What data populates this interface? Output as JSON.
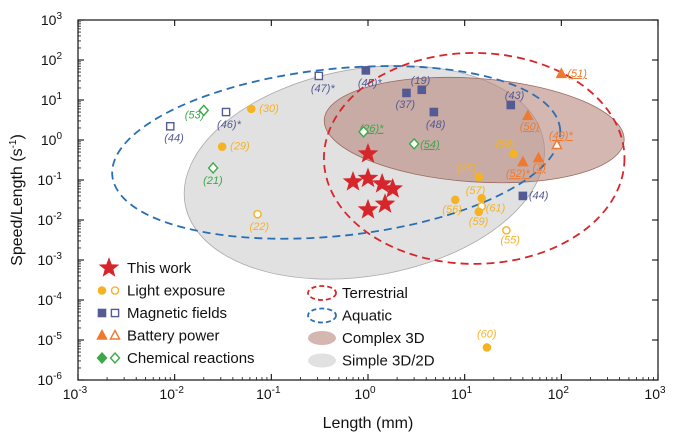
{
  "chart_data": {
    "type": "scatter",
    "xlabel": "Length (mm)",
    "ylabel": "Speed/Length (s⁻¹)",
    "x_scale": "log",
    "y_scale": "log",
    "xlim": [
      0.001,
      1000
    ],
    "ylim": [
      1e-06,
      1000
    ],
    "x_ticks": [
      {
        "value": 0.001,
        "base": "10",
        "exp": "-3"
      },
      {
        "value": 0.01,
        "base": "10",
        "exp": "-2"
      },
      {
        "value": 0.1,
        "base": "10",
        "exp": "-1"
      },
      {
        "value": 1,
        "base": "10",
        "exp": "0"
      },
      {
        "value": 10,
        "base": "10",
        "exp": "1"
      },
      {
        "value": 100,
        "base": "10",
        "exp": "2"
      },
      {
        "value": 1000,
        "base": "10",
        "exp": "3"
      }
    ],
    "y_ticks": [
      {
        "value": 1e-06,
        "base": "10",
        "exp": "-6"
      },
      {
        "value": 1e-05,
        "base": "10",
        "exp": "-5"
      },
      {
        "value": 0.0001,
        "base": "10",
        "exp": "-4"
      },
      {
        "value": 0.001,
        "base": "10",
        "exp": "-3"
      },
      {
        "value": 0.01,
        "base": "10",
        "exp": "-2"
      },
      {
        "value": 0.1,
        "base": "10",
        "exp": "-1"
      },
      {
        "value": 1,
        "base": "10",
        "exp": "0"
      },
      {
        "value": 10,
        "base": "10",
        "exp": "1"
      },
      {
        "value": 100,
        "base": "10",
        "exp": "2"
      },
      {
        "value": 1000,
        "base": "10",
        "exp": "3"
      }
    ],
    "colors": {
      "this_work": "#d7262b",
      "light": "#f5b324",
      "magnetic": "#545a94",
      "battery": "#ef7a2f",
      "chemical": "#3ba84a",
      "terrestrial": "#d7262b",
      "aquatic": "#2a6fb5",
      "complex_fill": "#b7877c",
      "simple_fill": "#c9c9c9"
    },
    "regions": [
      {
        "name": "Terrestrial",
        "style": "dashed",
        "x_range": [
          0.35,
          450
        ],
        "y_range": [
          0.0008,
          150
        ]
      },
      {
        "name": "Aquatic",
        "style": "dashed",
        "x_range": [
          0.0022,
          100
        ],
        "y_range": [
          0.004,
          60
        ]
      },
      {
        "name": "Complex 3D",
        "style": "filled",
        "x_range": [
          0.35,
          450
        ],
        "y_range": [
          0.09,
          35
        ]
      },
      {
        "name": "Simple 3D/2D",
        "style": "filled",
        "x_range": [
          0.012,
          70
        ],
        "y_range": [
          0.0004,
          60
        ]
      }
    ],
    "series": [
      {
        "name": "This work",
        "marker": "star",
        "points": [
          {
            "x": 1.0,
            "y": 0.45
          },
          {
            "x": 0.7,
            "y": 0.09
          },
          {
            "x": 1.0,
            "y": 0.11
          },
          {
            "x": 1.4,
            "y": 0.08
          },
          {
            "x": 1.8,
            "y": 0.06
          },
          {
            "x": 1.0,
            "y": 0.018
          },
          {
            "x": 1.5,
            "y": 0.025
          }
        ]
      },
      {
        "name": "Light exposure",
        "marker": "circle",
        "points": [
          {
            "x": 0.062,
            "y": 6.0,
            "label": "(30)",
            "filled": true
          },
          {
            "x": 0.031,
            "y": 0.68,
            "label": "(29)",
            "filled": true
          },
          {
            "x": 0.072,
            "y": 0.014,
            "label": "(22)",
            "filled": false
          },
          {
            "x": 8.0,
            "y": 0.032,
            "label": "(56)",
            "filled": true
          },
          {
            "x": 14,
            "y": 0.12,
            "label": "(25)",
            "filled": true
          },
          {
            "x": 15,
            "y": 0.035,
            "label": "(57)",
            "filled": true
          },
          {
            "x": 15,
            "y": 0.022,
            "label": "(61)",
            "filled": false
          },
          {
            "x": 14,
            "y": 0.016,
            "label": "(59)",
            "filled": true
          },
          {
            "x": 27,
            "y": 0.0055,
            "label": "(55)",
            "filled": false
          },
          {
            "x": 32,
            "y": 0.45,
            "label": "(58)",
            "filled": true
          },
          {
            "x": 17,
            "y": 6.5e-06,
            "label": "(60)",
            "filled": true
          }
        ]
      },
      {
        "name": "Magnetic fields",
        "marker": "square",
        "points": [
          {
            "x": 0.009,
            "y": 2.2,
            "label": "(44)",
            "filled": false
          },
          {
            "x": 0.034,
            "y": 5.0,
            "label": "(46)*",
            "filled": false
          },
          {
            "x": 0.31,
            "y": 40,
            "label": "(47)*",
            "filled": false
          },
          {
            "x": 0.95,
            "y": 55,
            "label": "(45)*",
            "filled": true
          },
          {
            "x": 2.5,
            "y": 15,
            "label": "(37)",
            "filled": true
          },
          {
            "x": 3.6,
            "y": 18,
            "label": "(19)",
            "filled": true
          },
          {
            "x": 4.8,
            "y": 5.0,
            "label": "(48)",
            "filled": true
          },
          {
            "x": 30,
            "y": 7.5,
            "label": "(43)",
            "filled": true
          },
          {
            "x": 40,
            "y": 0.04,
            "label": "(44)",
            "filled": true
          }
        ]
      },
      {
        "name": "Battery power",
        "marker": "triangle",
        "points": [
          {
            "x": 100,
            "y": 45,
            "label": "(51)",
            "filled": true
          },
          {
            "x": 45,
            "y": 4.0,
            "label": "(50)",
            "filled": true
          },
          {
            "x": 90,
            "y": 0.75,
            "label": "(49)*",
            "filled": false
          },
          {
            "x": 58,
            "y": 0.35,
            "label": "(3)",
            "filled": true
          },
          {
            "x": 40,
            "y": 0.28,
            "label": "(52)*",
            "filled": true
          }
        ]
      },
      {
        "name": "Chemical reactions",
        "marker": "diamond",
        "points": [
          {
            "x": 0.02,
            "y": 5.5,
            "label": "(53)",
            "filled": false
          },
          {
            "x": 0.025,
            "y": 0.2,
            "label": "(21)",
            "filled": false
          },
          {
            "x": 0.9,
            "y": 1.6,
            "label": "(26)*",
            "filled": false
          },
          {
            "x": 3.0,
            "y": 0.8,
            "label": "(54)",
            "filled": false
          }
        ]
      }
    ],
    "legend": {
      "placement": "bottom-left",
      "items": [
        {
          "text": "This work",
          "marker": "star"
        },
        {
          "text": "Light exposure",
          "marker": "circle"
        },
        {
          "text": "Magnetic fields",
          "marker": "square"
        },
        {
          "text": "Battery power",
          "marker": "triangle"
        },
        {
          "text": "Chemical reactions",
          "marker": "diamond"
        },
        {
          "text": "Terrestrial",
          "marker": "ellipse-dashed"
        },
        {
          "text": "Aquatic",
          "marker": "ellipse-dashed"
        },
        {
          "text": "Complex 3D",
          "marker": "ellipse-filled"
        },
        {
          "text": "Simple 3D/2D",
          "marker": "ellipse-filled"
        }
      ]
    }
  }
}
